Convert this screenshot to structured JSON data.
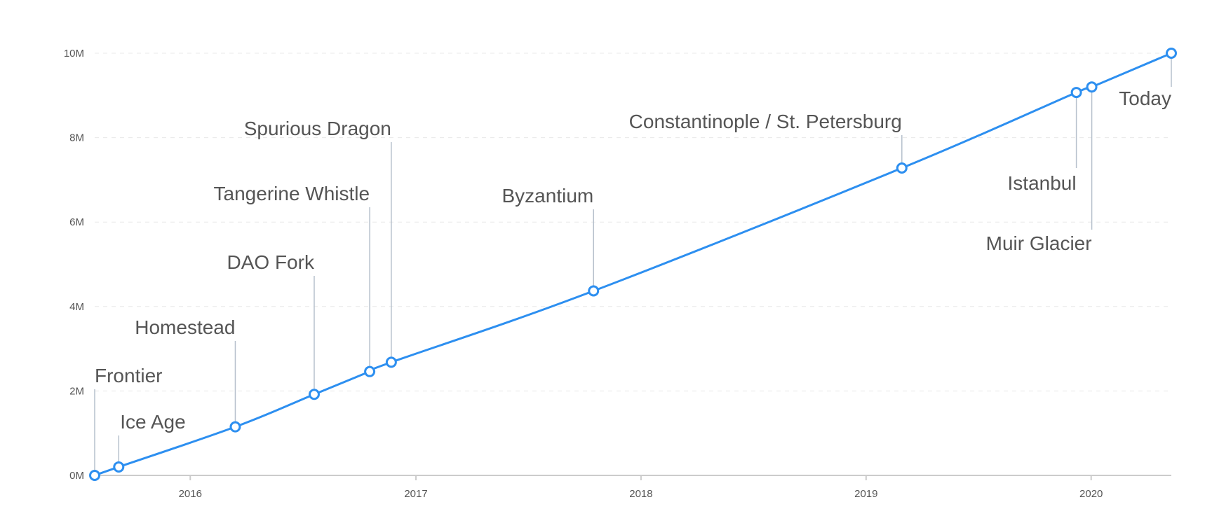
{
  "chart_data": {
    "type": "line",
    "title": "",
    "xlabel": "",
    "ylabel": "",
    "grid": true,
    "legend": "none",
    "ylim": [
      0,
      10000000
    ],
    "y_ticks": [
      {
        "value": 0,
        "label": "0M"
      },
      {
        "value": 2000000,
        "label": "2M"
      },
      {
        "value": 4000000,
        "label": "4M"
      },
      {
        "value": 6000000,
        "label": "6M"
      },
      {
        "value": 8000000,
        "label": "8M"
      },
      {
        "value": 10000000,
        "label": "10M"
      }
    ],
    "x_ticks": [
      {
        "value": "2016-01-01",
        "label": "2016"
      },
      {
        "value": "2017-01-01",
        "label": "2017"
      },
      {
        "value": "2018-01-01",
        "label": "2018"
      },
      {
        "value": "2019-01-01",
        "label": "2019"
      },
      {
        "value": "2020-01-01",
        "label": "2020"
      }
    ],
    "xlim": [
      "2015-07-30",
      "2020-05-10"
    ],
    "series": [
      {
        "color": "#2d8ff0",
        "points": [
          {
            "x": "2015-07-30",
            "y": 0,
            "label": "Frontier"
          },
          {
            "x": "2015-09-07",
            "y": 200000,
            "label": "Ice Age"
          },
          {
            "x": "2016-03-14",
            "y": 1150000,
            "label": "Homestead"
          },
          {
            "x": "2016-07-20",
            "y": 1920000,
            "label": "DAO Fork"
          },
          {
            "x": "2016-10-18",
            "y": 2460000,
            "label": "Tangerine Whistle"
          },
          {
            "x": "2016-11-22",
            "y": 2680000,
            "label": "Spurious Dragon"
          },
          {
            "x": "2017-10-16",
            "y": 4370000,
            "label": "Byzantium"
          },
          {
            "x": "2019-02-28",
            "y": 7280000,
            "label": "Constantinople / St. Petersburg"
          },
          {
            "x": "2019-12-08",
            "y": 9070000,
            "label": "Istanbul"
          },
          {
            "x": "2020-01-02",
            "y": 9200000,
            "label": "Muir Glacier"
          },
          {
            "x": "2020-05-10",
            "y": 10000000,
            "label": "Today"
          }
        ]
      }
    ]
  }
}
